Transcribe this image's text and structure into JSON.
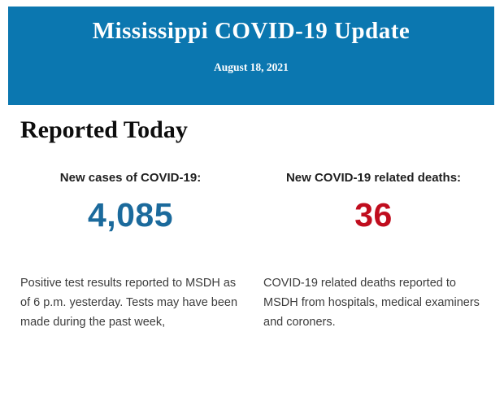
{
  "header": {
    "title": "Mississippi COVID-19 Update",
    "date": "August 18, 2021",
    "background_color": "#0b77b0",
    "text_color": "#ffffff"
  },
  "report": {
    "heading": "Reported Today",
    "stats": [
      {
        "label": "New cases of COVID-19:",
        "value": "4,085",
        "value_color": "#1b6a9c",
        "description": "Positive test results reported to MSDH as of 6 p.m. yesterday. Tests may have been made during the past week,"
      },
      {
        "label": "New COVID-19 related deaths:",
        "value": "36",
        "value_color": "#c00d1e",
        "description": "COVID-19 related deaths reported to MSDH from hospitals, medical examiners and coroners."
      }
    ]
  }
}
